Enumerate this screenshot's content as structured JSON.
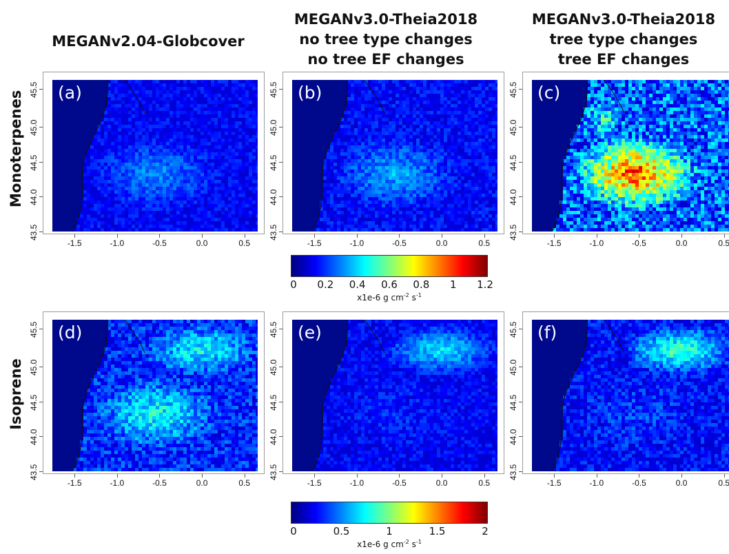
{
  "columns": [
    {
      "title": [
        "MEGANv2.04-Globcover"
      ]
    },
    {
      "title": [
        "MEGANv3.0-Theia2018",
        "no tree type changes",
        "no tree EF changes"
      ]
    },
    {
      "title": [
        "MEGANv3.0-Theia2018",
        "tree type changes",
        "tree EF changes"
      ]
    }
  ],
  "rows": [
    {
      "title": "Monoterpenes"
    },
    {
      "title": "Isoprene"
    }
  ],
  "panels": [
    {
      "label": "(a)",
      "intensity": 0.28,
      "pattern": "landes"
    },
    {
      "label": "(b)",
      "intensity": 0.32,
      "pattern": "landes"
    },
    {
      "label": "(c)",
      "intensity": 0.75,
      "pattern": "landes-hot"
    },
    {
      "label": "(d)",
      "intensity": 0.45,
      "pattern": "mixed"
    },
    {
      "label": "(e)",
      "intensity": 0.3,
      "pattern": "northeast"
    },
    {
      "label": "(f)",
      "intensity": 0.4,
      "pattern": "northeast"
    }
  ],
  "x_ticks": [
    "-1.5",
    "-1.0",
    "-0.5",
    "0.0",
    "0.5"
  ],
  "y_ticks": [
    "43.5",
    "44.0",
    "44.5",
    "45.0",
    "45.5"
  ],
  "colorbars": [
    {
      "ticks": [
        "0",
        "0.2",
        "0.4",
        "0.6",
        "0.8",
        "1",
        "1.2"
      ],
      "range": [
        0,
        1.2
      ],
      "unit_base": "x1e-6 g cm",
      "unit_exp1": "-2",
      "unit_mid": " s",
      "unit_exp2": "-1"
    },
    {
      "ticks": [
        "0",
        "0.5",
        "1",
        "1.5",
        "2"
      ],
      "range": [
        0,
        2
      ],
      "unit_base": "x1e-6 g cm",
      "unit_exp1": "-2",
      "unit_mid": " s",
      "unit_exp2": "-1"
    }
  ],
  "colors": {
    "ocean": "#00088c",
    "colormap": [
      "#00007f",
      "#0000ff",
      "#007fff",
      "#00ffff",
      "#7fff7f",
      "#ffff00",
      "#ff7f00",
      "#ff0000",
      "#7f0000"
    ]
  }
}
